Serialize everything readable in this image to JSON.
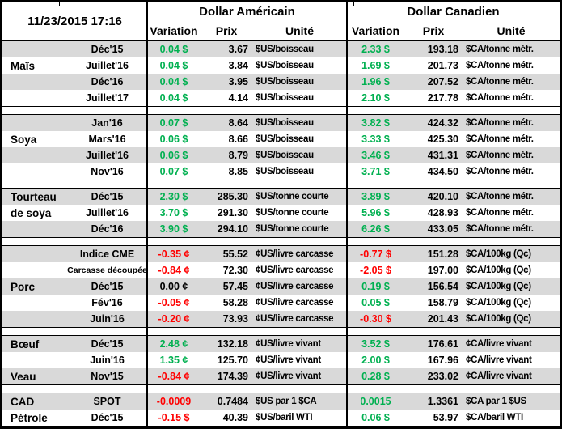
{
  "meta": {
    "timestamp": "11/23/2015 17:16"
  },
  "header": {
    "us_title": "Dollar Américain",
    "ca_title": "Dollar Canadien",
    "variation_label": "Variation",
    "prix_label": "Prix",
    "unite_label": "Unité"
  },
  "colors": {
    "up": "#00b050",
    "down": "#ff0000",
    "flat": "#000000",
    "alt_row": "#d9d9d9",
    "grid": "#000000"
  },
  "sections": [
    {
      "id": "mais",
      "rows": [
        {
          "cat": "",
          "month": "Déc'15",
          "us_var": "0.04 $",
          "us_trend": "up",
          "us_prix": "3.67",
          "us_unit": "$US/boisseau",
          "ca_var": "2.33 $",
          "ca_trend": "up",
          "ca_prix": "193.18",
          "ca_unit": "$CA/tonne métr."
        },
        {
          "cat": "Maïs",
          "month": "Juillet'16",
          "us_var": "0.04 $",
          "us_trend": "up",
          "us_prix": "3.84",
          "us_unit": "$US/boisseau",
          "ca_var": "1.69 $",
          "ca_trend": "up",
          "ca_prix": "201.73",
          "ca_unit": "$CA/tonne métr."
        },
        {
          "cat": "",
          "month": "Déc'16",
          "us_var": "0.04 $",
          "us_trend": "up",
          "us_prix": "3.95",
          "us_unit": "$US/boisseau",
          "ca_var": "1.96 $",
          "ca_trend": "up",
          "ca_prix": "207.52",
          "ca_unit": "$CA/tonne métr."
        },
        {
          "cat": "",
          "month": "Juillet'17",
          "us_var": "0.04 $",
          "us_trend": "up",
          "us_prix": "4.14",
          "us_unit": "$US/boisseau",
          "ca_var": "2.10 $",
          "ca_trend": "up",
          "ca_prix": "217.78",
          "ca_unit": "$CA/tonne métr."
        }
      ]
    },
    {
      "id": "soya",
      "rows": [
        {
          "cat": "",
          "month": "Jan'16",
          "us_var": "0.07 $",
          "us_trend": "up",
          "us_prix": "8.64",
          "us_unit": "$US/boisseau",
          "ca_var": "3.82 $",
          "ca_trend": "up",
          "ca_prix": "424.32",
          "ca_unit": "$CA/tonne métr."
        },
        {
          "cat": "Soya",
          "month": "Mars'16",
          "us_var": "0.06 $",
          "us_trend": "up",
          "us_prix": "8.66",
          "us_unit": "$US/boisseau",
          "ca_var": "3.33 $",
          "ca_trend": "up",
          "ca_prix": "425.30",
          "ca_unit": "$CA/tonne métr."
        },
        {
          "cat": "",
          "month": "Juillet'16",
          "us_var": "0.06 $",
          "us_trend": "up",
          "us_prix": "8.79",
          "us_unit": "$US/boisseau",
          "ca_var": "3.46 $",
          "ca_trend": "up",
          "ca_prix": "431.31",
          "ca_unit": "$CA/tonne métr."
        },
        {
          "cat": "",
          "month": "Nov'16",
          "us_var": "0.07 $",
          "us_trend": "up",
          "us_prix": "8.85",
          "us_unit": "$US/boisseau",
          "ca_var": "3.71 $",
          "ca_trend": "up",
          "ca_prix": "434.50",
          "ca_unit": "$CA/tonne métr."
        }
      ]
    },
    {
      "id": "tourteau-de-soya",
      "rows": [
        {
          "cat": "Tourteau",
          "month": "Déc'15",
          "us_var": "2.30 $",
          "us_trend": "up",
          "us_prix": "285.30",
          "us_unit": "$US/tonne courte",
          "ca_var": "3.89 $",
          "ca_trend": "up",
          "ca_prix": "420.10",
          "ca_unit": "$CA/tonne métr."
        },
        {
          "cat": "de soya",
          "month": "Juillet'16",
          "us_var": "3.70 $",
          "us_trend": "up",
          "us_prix": "291.30",
          "us_unit": "$US/tonne courte",
          "ca_var": "5.96 $",
          "ca_trend": "up",
          "ca_prix": "428.93",
          "ca_unit": "$CA/tonne métr."
        },
        {
          "cat": "",
          "month": "Déc'16",
          "us_var": "3.90 $",
          "us_trend": "up",
          "us_prix": "294.10",
          "us_unit": "$US/tonne courte",
          "ca_var": "6.26 $",
          "ca_trend": "up",
          "ca_prix": "433.05",
          "ca_unit": "$CA/tonne métr."
        }
      ]
    },
    {
      "id": "porc",
      "rows": [
        {
          "cat": "",
          "month": "Indice CME",
          "us_var": "-0.35 ¢",
          "us_trend": "down",
          "us_prix": "55.52",
          "us_unit": "¢US/livre carcasse",
          "ca_var": "-0.77 $",
          "ca_trend": "down",
          "ca_prix": "151.28",
          "ca_unit": "$CA/100kg (Qc)"
        },
        {
          "cat": "",
          "month": "Carcasse découpée",
          "month_small": true,
          "us_var": "-0.84 ¢",
          "us_trend": "down",
          "us_prix": "72.30",
          "us_unit": "¢US/livre carcasse",
          "ca_var": "-2.05 $",
          "ca_trend": "down",
          "ca_prix": "197.00",
          "ca_unit": "$CA/100kg (Qc)"
        },
        {
          "cat": "Porc",
          "month": "Déc'15",
          "us_var": "0.00 ¢",
          "us_trend": "flat",
          "us_prix": "57.45",
          "us_unit": "¢US/livre carcasse",
          "ca_var": "0.19 $",
          "ca_trend": "up",
          "ca_prix": "156.54",
          "ca_unit": "$CA/100kg (Qc)"
        },
        {
          "cat": "",
          "month": "Fév'16",
          "us_var": "-0.05 ¢",
          "us_trend": "down",
          "us_prix": "58.28",
          "us_unit": "¢US/livre carcasse",
          "ca_var": "0.05 $",
          "ca_trend": "up",
          "ca_prix": "158.79",
          "ca_unit": "$CA/100kg (Qc)"
        },
        {
          "cat": "",
          "month": "Juin'16",
          "us_var": "-0.20 ¢",
          "us_trend": "down",
          "us_prix": "73.93",
          "us_unit": "¢US/livre carcasse",
          "ca_var": "-0.30 $",
          "ca_trend": "down",
          "ca_prix": "201.43",
          "ca_unit": "$CA/100kg (Qc)"
        }
      ]
    },
    {
      "id": "boeuf-veau",
      "rows": [
        {
          "cat": "Bœuf",
          "month": "Déc'15",
          "us_var": "2.48 ¢",
          "us_trend": "up",
          "us_prix": "132.18",
          "us_unit": "¢US/livre vivant",
          "ca_var": "3.52 $",
          "ca_trend": "up",
          "ca_prix": "176.61",
          "ca_unit": "¢CA/livre vivant"
        },
        {
          "cat": "",
          "month": "Juin'16",
          "us_var": "1.35 ¢",
          "us_trend": "up",
          "us_prix": "125.70",
          "us_unit": "¢US/livre vivant",
          "ca_var": "2.00 $",
          "ca_trend": "up",
          "ca_prix": "167.96",
          "ca_unit": "¢CA/livre vivant"
        },
        {
          "cat": "Veau",
          "month": "Nov'15",
          "us_var": "-0.84 ¢",
          "us_trend": "down",
          "us_prix": "174.39",
          "us_unit": "¢US/livre vivant",
          "ca_var": "0.28 $",
          "ca_trend": "up",
          "ca_prix": "233.02",
          "ca_unit": "¢CA/livre vivant"
        }
      ]
    },
    {
      "id": "cad-petrole",
      "rows": [
        {
          "cat": "CAD",
          "month": "SPOT",
          "us_var": "-0.0009",
          "us_trend": "down",
          "us_prix": "0.7484",
          "us_unit": "$US par 1 $CA",
          "ca_var": "0.0015",
          "ca_trend": "up",
          "ca_prix": "1.3361",
          "ca_unit": "$CA par 1 $US"
        },
        {
          "cat": "Pétrole",
          "month": "Déc'15",
          "us_var": "-0.15 $",
          "us_trend": "down",
          "us_prix": "40.39",
          "us_unit": "$US/baril WTI",
          "ca_var": "0.06 $",
          "ca_trend": "up",
          "ca_prix": "53.97",
          "ca_unit": "$CA/baril WTI"
        }
      ]
    }
  ]
}
